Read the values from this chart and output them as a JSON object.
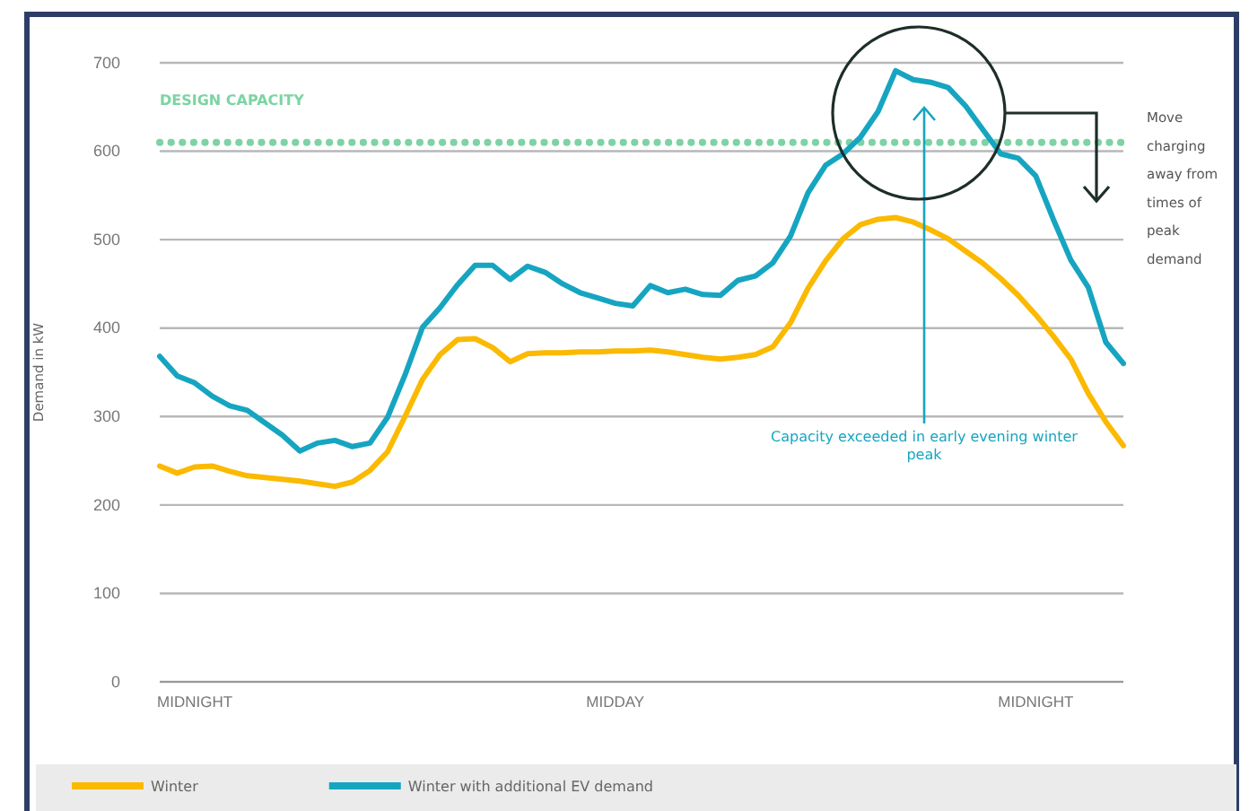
{
  "chart_data": {
    "type": "line",
    "ylabel": "Demand in kW",
    "categories": [
      null,
      null,
      "MIDNIGHT",
      null,
      null,
      null,
      null,
      null,
      null,
      null,
      null,
      null,
      null,
      null,
      null,
      null,
      null,
      null,
      null,
      null,
      null,
      null,
      null,
      null,
      null,
      null,
      "MIDDAY",
      null,
      null,
      null,
      null,
      null,
      null,
      null,
      null,
      null,
      null,
      null,
      null,
      null,
      null,
      null,
      null,
      null,
      null,
      null,
      null,
      null,
      null,
      null,
      "MIDNIGHT",
      null,
      null,
      null,
      null,
      null
    ],
    "ylim": [
      0,
      700
    ],
    "yticks": [
      0,
      100,
      200,
      300,
      400,
      500,
      600,
      700
    ],
    "grid": "y",
    "legend": "bottom",
    "line_style": "solid",
    "marker": "none",
    "series": [
      {
        "name": "Winter",
        "color": "#fbb900",
        "values": [
          244,
          236,
          243,
          244,
          238,
          233,
          231,
          229,
          227,
          224,
          221,
          226,
          239,
          260,
          300,
          342,
          370,
          387,
          388,
          378,
          362,
          371,
          372,
          372,
          373,
          373,
          374,
          374,
          375,
          373,
          370,
          367,
          365,
          367,
          370,
          379,
          406,
          445,
          476,
          501,
          517,
          523,
          525,
          520,
          511,
          501,
          487,
          473,
          456,
          437,
          415,
          391,
          365,
          326,
          294,
          267
        ]
      },
      {
        "name": "Winter with additional EV demand",
        "color": "#16a5c1",
        "values": [
          368,
          346,
          338,
          323,
          312,
          307,
          293,
          279,
          261,
          270,
          273,
          266,
          270,
          299,
          347,
          401,
          423,
          449,
          471,
          471,
          455,
          470,
          463,
          450,
          440,
          434,
          428,
          425,
          448,
          440,
          444,
          438,
          437,
          454,
          459,
          474,
          504,
          553,
          584,
          597,
          616,
          645,
          691,
          681,
          678,
          672,
          651,
          624,
          597,
          592,
          572,
          523,
          477,
          446,
          384,
          360
        ]
      }
    ],
    "ref_lines": [
      {
        "axis": "y",
        "value": 610,
        "label": "DESIGN CAPACITY",
        "color": "#7dd3a3",
        "line_style": "dotted"
      }
    ],
    "annotations": [
      "Capacity exceeded in early evening winter peak",
      "Move charging away from times of peak demand"
    ]
  }
}
